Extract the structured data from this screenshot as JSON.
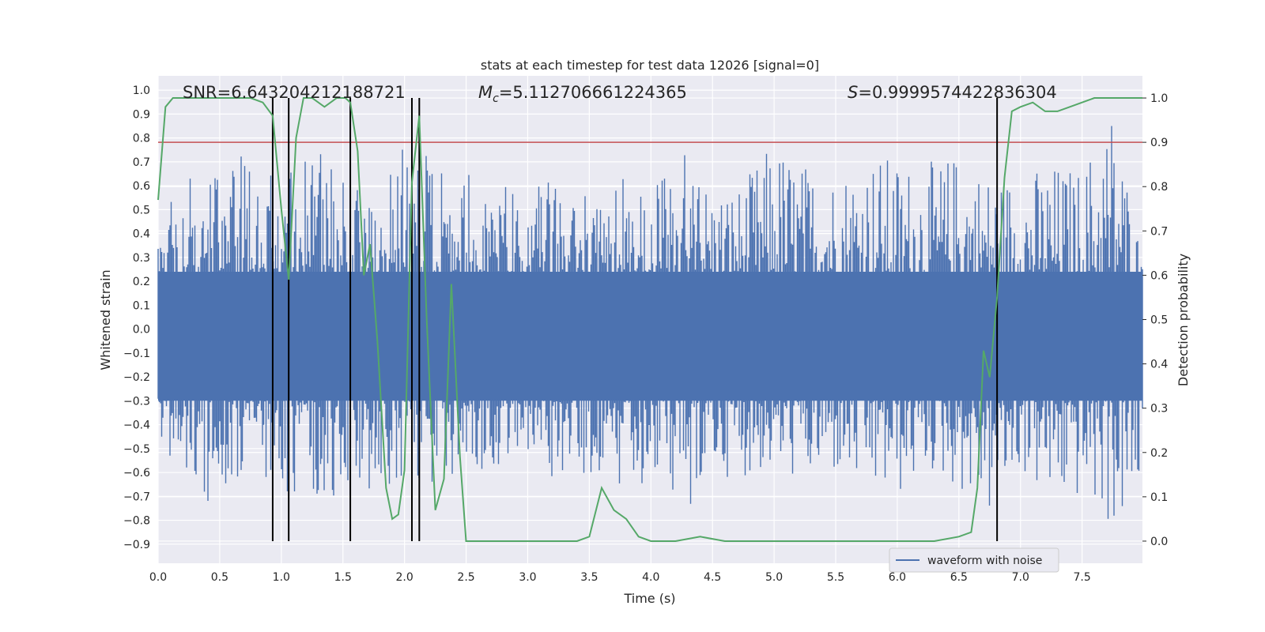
{
  "chart_data": {
    "type": "line",
    "title": "stats at each timestep for test data 12026 [signal=0]",
    "xlabel": "Time (s)",
    "ylabel": "Whitened strain",
    "y2label": "Detection probability",
    "xlim": [
      0.0,
      7.99
    ],
    "ylim": [
      -0.98,
      1.06
    ],
    "y2lim": [
      -0.05,
      1.05
    ],
    "x_ticks": [
      "0.0",
      "0.5",
      "1.0",
      "1.5",
      "2.0",
      "2.5",
      "3.0",
      "3.5",
      "4.0",
      "4.5",
      "5.0",
      "5.5",
      "6.0",
      "6.5",
      "7.0",
      "7.5"
    ],
    "y_ticks": [
      "−0.9",
      "−0.8",
      "−0.7",
      "−0.6",
      "−0.5",
      "−0.4",
      "−0.3",
      "−0.2",
      "−0.1",
      "0.0",
      "0.1",
      "0.2",
      "0.3",
      "0.4",
      "0.5",
      "0.6",
      "0.7",
      "0.8",
      "0.9",
      "1.0"
    ],
    "y2_ticks": [
      "0.0",
      "0.1",
      "0.2",
      "0.3",
      "0.4",
      "0.5",
      "0.6",
      "0.7",
      "0.8",
      "0.9",
      "1.0"
    ],
    "annotations": {
      "snr": "SNR=6.643204212188721",
      "mc_symbol": "M",
      "mc_sub": "c",
      "mc_value": "=5.112706661224365",
      "s_symbol": "S",
      "s_value": "=0.9999574422836304"
    },
    "legend": {
      "entries": [
        "waveform with noise"
      ],
      "placement": "lower-right"
    },
    "grid": true,
    "threshold_line": {
      "y2": 0.9,
      "color": "#c44e52"
    },
    "vertical_lines_x": [
      0.93,
      1.06,
      1.56,
      2.06,
      2.12,
      6.81
    ],
    "series": [
      {
        "name": "waveform with noise",
        "color": "#4c72b0",
        "axis": "left",
        "envelope_x": [
          0.0,
          0.25,
          0.5,
          0.75,
          1.0,
          1.25,
          1.5,
          1.75,
          2.0,
          2.25,
          2.5,
          2.75,
          3.0,
          3.25,
          3.5,
          3.75,
          4.0,
          4.25,
          4.5,
          4.75,
          5.0,
          5.25,
          5.5,
          5.75,
          6.0,
          6.25,
          6.5,
          6.75,
          7.0,
          7.25,
          7.5,
          7.75,
          7.99
        ],
        "envelope_upper": [
          0.45,
          0.7,
          0.75,
          0.72,
          0.72,
          0.78,
          0.7,
          0.6,
          0.8,
          0.72,
          0.7,
          0.6,
          0.65,
          0.6,
          0.62,
          0.65,
          0.55,
          0.8,
          0.6,
          0.62,
          0.8,
          0.7,
          0.68,
          0.75,
          0.72,
          0.7,
          0.75,
          0.66,
          0.66,
          0.7,
          0.68,
          0.98,
          0.3
        ],
        "envelope_lower": [
          -0.55,
          -0.75,
          -0.72,
          -0.65,
          -0.7,
          -0.72,
          -0.78,
          -0.65,
          -0.65,
          -0.68,
          -0.55,
          -0.62,
          -0.66,
          -0.62,
          -0.6,
          -0.68,
          -0.65,
          -0.85,
          -0.62,
          -0.62,
          -0.6,
          -0.65,
          -0.62,
          -0.7,
          -0.72,
          -0.6,
          -0.68,
          -0.8,
          -0.6,
          -0.75,
          -0.72,
          -0.85,
          -0.8
        ]
      },
      {
        "name": "",
        "color": "#55a868",
        "axis": "right",
        "x": [
          0.0,
          0.06,
          0.12,
          0.2,
          0.4,
          0.6,
          0.75,
          0.85,
          0.93,
          1.0,
          1.06,
          1.12,
          1.18,
          1.25,
          1.35,
          1.45,
          1.52,
          1.56,
          1.62,
          1.67,
          1.72,
          1.78,
          1.85,
          1.9,
          1.95,
          2.0,
          2.06,
          2.12,
          2.18,
          2.25,
          2.32,
          2.38,
          2.45,
          2.5,
          2.55,
          2.6,
          2.8,
          3.0,
          3.2,
          3.4,
          3.5,
          3.6,
          3.7,
          3.8,
          3.9,
          4.0,
          4.2,
          4.4,
          4.6,
          5.0,
          5.5,
          6.0,
          6.3,
          6.5,
          6.6,
          6.65,
          6.7,
          6.75,
          6.81,
          6.87,
          6.93,
          7.0,
          7.1,
          7.2,
          7.3,
          7.4,
          7.5,
          7.6,
          7.99
        ],
        "y": [
          0.77,
          0.98,
          1.0,
          1.0,
          1.0,
          1.0,
          1.0,
          0.99,
          0.96,
          0.75,
          0.59,
          0.91,
          1.0,
          1.0,
          0.98,
          1.0,
          1.0,
          0.99,
          0.88,
          0.6,
          0.67,
          0.45,
          0.12,
          0.05,
          0.06,
          0.16,
          0.81,
          0.96,
          0.5,
          0.07,
          0.14,
          0.58,
          0.19,
          0.0,
          0.0,
          0.0,
          0.0,
          0.0,
          0.0,
          0.0,
          0.01,
          0.12,
          0.07,
          0.05,
          0.01,
          0.0,
          0.0,
          0.01,
          0.0,
          0.0,
          0.0,
          0.0,
          0.0,
          0.01,
          0.02,
          0.12,
          0.43,
          0.37,
          0.55,
          0.82,
          0.97,
          0.98,
          0.99,
          0.97,
          0.97,
          0.98,
          0.99,
          1.0,
          1.0
        ]
      }
    ]
  }
}
